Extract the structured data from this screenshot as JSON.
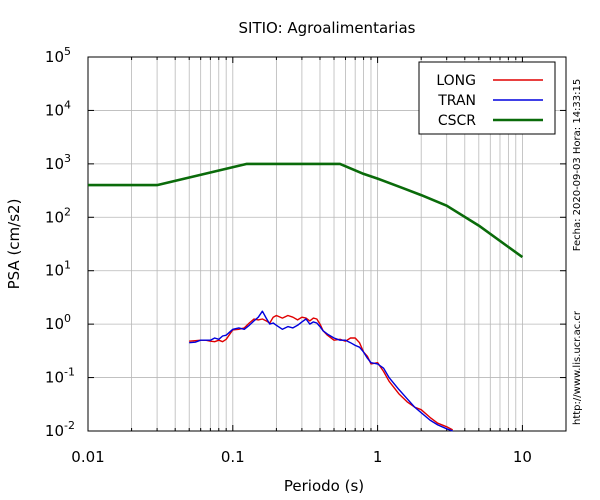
{
  "chart_data": {
    "type": "line",
    "title": "SITIO: Agroalimentarias",
    "xlabel": "Periodo (s)",
    "ylabel": "PSA (cm/s2)",
    "xscale": "log",
    "yscale": "log",
    "xlim": [
      0.01,
      20
    ],
    "ylim": [
      0.01,
      100000
    ],
    "grid": true,
    "legend_position": "top-right",
    "x_ticks": [
      {
        "value": 0.01,
        "label": "0.01"
      },
      {
        "value": 0.1,
        "label": "0.1"
      },
      {
        "value": 1,
        "label": "1"
      },
      {
        "value": 10,
        "label": "10"
      }
    ],
    "y_ticks": [
      {
        "value": 0.01,
        "base": "10",
        "exp": "-2"
      },
      {
        "value": 0.1,
        "base": "10",
        "exp": "-1"
      },
      {
        "value": 1,
        "base": "10",
        "exp": "0"
      },
      {
        "value": 10,
        "base": "10",
        "exp": "1"
      },
      {
        "value": 100,
        "base": "10",
        "exp": "2"
      },
      {
        "value": 1000,
        "base": "10",
        "exp": "3"
      },
      {
        "value": 10000,
        "base": "10",
        "exp": "4"
      },
      {
        "value": 100000,
        "base": "10",
        "exp": "5"
      }
    ],
    "side_text_date": "Fecha: 2020-09-03 Hora: 14:33:15",
    "side_text_url": "http://www.lis.ucr.ac.cr",
    "series": [
      {
        "name": "LONG",
        "color": "#e00000",
        "x": [
          0.05,
          0.055,
          0.06,
          0.065,
          0.07,
          0.075,
          0.08,
          0.085,
          0.09,
          0.1,
          0.11,
          0.12,
          0.13,
          0.14,
          0.15,
          0.16,
          0.17,
          0.18,
          0.19,
          0.2,
          0.22,
          0.24,
          0.26,
          0.28,
          0.3,
          0.32,
          0.34,
          0.36,
          0.38,
          0.4,
          0.42,
          0.45,
          0.5,
          0.55,
          0.6,
          0.65,
          0.7,
          0.75,
          0.8,
          0.85,
          0.9,
          1.0,
          1.1,
          1.2,
          1.4,
          1.6,
          1.8,
          2.0,
          2.3,
          2.6,
          3.0,
          3.3
        ],
        "y": [
          0.48,
          0.49,
          0.5,
          0.5,
          0.48,
          0.47,
          0.5,
          0.47,
          0.52,
          0.78,
          0.8,
          0.85,
          1.05,
          1.25,
          1.2,
          1.25,
          1.15,
          1.05,
          1.35,
          1.45,
          1.3,
          1.45,
          1.35,
          1.2,
          1.35,
          1.3,
          1.15,
          1.3,
          1.25,
          1.0,
          0.75,
          0.62,
          0.5,
          0.52,
          0.48,
          0.55,
          0.55,
          0.45,
          0.3,
          0.25,
          0.18,
          0.19,
          0.13,
          0.085,
          0.05,
          0.035,
          0.028,
          0.025,
          0.018,
          0.014,
          0.012,
          0.0105
        ]
      },
      {
        "name": "TRAN",
        "color": "#0000dd",
        "x": [
          0.05,
          0.055,
          0.06,
          0.065,
          0.07,
          0.075,
          0.08,
          0.085,
          0.09,
          0.1,
          0.11,
          0.12,
          0.13,
          0.14,
          0.15,
          0.16,
          0.17,
          0.18,
          0.19,
          0.2,
          0.22,
          0.24,
          0.26,
          0.28,
          0.3,
          0.32,
          0.34,
          0.36,
          0.38,
          0.4,
          0.42,
          0.45,
          0.5,
          0.55,
          0.6,
          0.65,
          0.7,
          0.75,
          0.8,
          0.85,
          0.9,
          1.0,
          1.1,
          1.2,
          1.4,
          1.6,
          1.8,
          2.0,
          2.3,
          2.6,
          3.0,
          3.3
        ],
        "y": [
          0.45,
          0.46,
          0.5,
          0.5,
          0.5,
          0.55,
          0.52,
          0.6,
          0.62,
          0.8,
          0.85,
          0.8,
          0.95,
          1.15,
          1.35,
          1.75,
          1.3,
          1.0,
          1.05,
          0.95,
          0.8,
          0.9,
          0.85,
          0.95,
          1.1,
          1.25,
          1.0,
          1.1,
          1.05,
          0.9,
          0.75,
          0.65,
          0.55,
          0.5,
          0.5,
          0.45,
          0.4,
          0.37,
          0.3,
          0.23,
          0.19,
          0.18,
          0.15,
          0.1,
          0.06,
          0.04,
          0.028,
          0.022,
          0.016,
          0.013,
          0.011,
          0.01
        ]
      },
      {
        "name": "CSCR",
        "color": "#0a6b0a",
        "x": [
          0.01,
          0.03,
          0.125,
          0.55,
          0.8,
          1.0,
          1.5,
          2.0,
          3.0,
          5.0,
          10.0
        ],
        "y": [
          400,
          400,
          1000,
          1000,
          650,
          530,
          350,
          260,
          165,
          70,
          18
        ]
      }
    ]
  }
}
